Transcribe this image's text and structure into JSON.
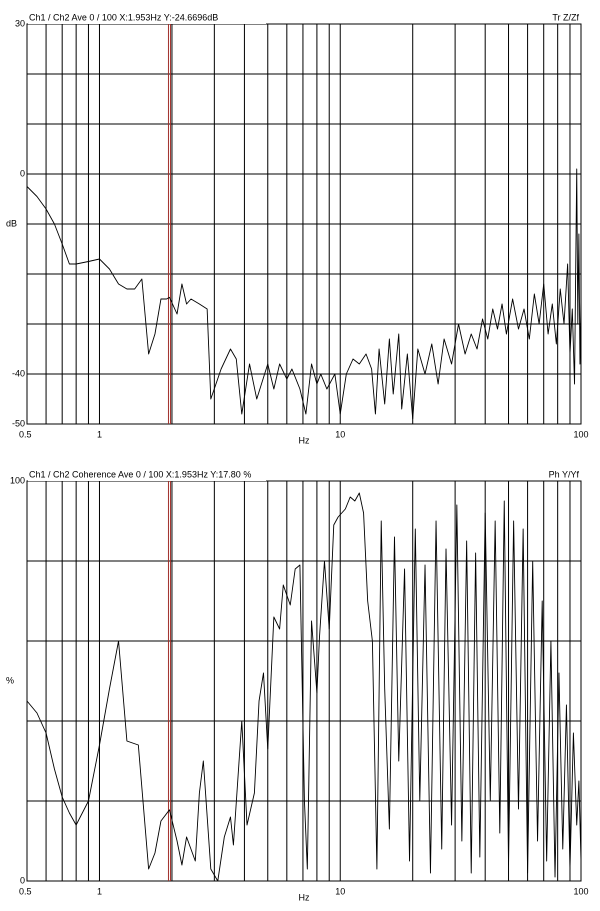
{
  "chart_data": [
    {
      "type": "line",
      "header": "Ch1 / Ch2  Ave 0 / 100  X:1.953Hz  Y:-24.6696dB",
      "corner_label": "Tr Z/Zf",
      "ylabel": "dB",
      "xlabel": "Hz",
      "xscale": "log",
      "xlim": [
        0.5,
        100
      ],
      "xticks": [
        0.5,
        1,
        10,
        100
      ],
      "xgrid": [
        0.5,
        0.6,
        0.7,
        0.8,
        0.9,
        1,
        2,
        3,
        4,
        5,
        6,
        7,
        8,
        9,
        10,
        20,
        30,
        40,
        50,
        60,
        70,
        80,
        90,
        100
      ],
      "ylim": [
        -50,
        30
      ],
      "yticks": [
        -50,
        -40,
        0,
        30
      ],
      "ygrid": [
        -50,
        -40,
        -30,
        -20,
        -10,
        0,
        10,
        20,
        30
      ],
      "cursor": {
        "x": 1.953,
        "color": "#a0302a"
      },
      "x": [
        0.5,
        0.55,
        0.6,
        0.65,
        0.7,
        0.75,
        0.8,
        0.9,
        1.0,
        1.1,
        1.2,
        1.3,
        1.4,
        1.5,
        1.6,
        1.7,
        1.8,
        1.9,
        1.953,
        2.1,
        2.2,
        2.3,
        2.4,
        2.6,
        2.8,
        2.9,
        3.2,
        3.5,
        3.7,
        3.9,
        4.2,
        4.5,
        5,
        5.3,
        5.6,
        6,
        6.3,
        6.8,
        7.2,
        7.6,
        8,
        8.3,
        8.8,
        9.5,
        10,
        10.6,
        11.3,
        12,
        12.8,
        13.5,
        14,
        14.5,
        15.3,
        16,
        16.6,
        17.5,
        18,
        19,
        20,
        21,
        22.5,
        24,
        25.5,
        27,
        29,
        31,
        33,
        35,
        37,
        39,
        41,
        43,
        45,
        47,
        49,
        52,
        55,
        58,
        61,
        64,
        67,
        70,
        73,
        76,
        79,
        82,
        85,
        88,
        90,
        92,
        94,
        96,
        97,
        98,
        99,
        100
      ],
      "series": [
        {
          "color": "#000000",
          "values": [
            -2.5,
            -4.5,
            -7,
            -10,
            -14,
            -18,
            -18,
            -17.5,
            -17,
            -19,
            -22,
            -23,
            -23,
            -21,
            -36,
            -32,
            -25,
            -25,
            -24.67,
            -28,
            -22,
            -26,
            -25,
            -26,
            -27,
            -45,
            -39,
            -35,
            -37,
            -48,
            -38,
            -45,
            -38,
            -43,
            -38,
            -41,
            -39,
            -43,
            -48,
            -38,
            -42,
            -40,
            -43,
            -40,
            -48,
            -40,
            -37,
            -38,
            -36,
            -39,
            -48,
            -35,
            -46,
            -33,
            -44,
            -32,
            -47,
            -36,
            -49,
            -35,
            -40,
            -34,
            -42,
            -33,
            -38,
            -30,
            -36,
            -32,
            -35,
            -29,
            -33,
            -27,
            -31,
            -26,
            -32,
            -25,
            -31,
            -27,
            -33,
            -24,
            -30,
            -22,
            -32,
            -26,
            -34,
            -23,
            -30,
            -18,
            -36,
            -27,
            -42,
            1,
            -30,
            -12,
            -38,
            -25
          ]
        }
      ]
    },
    {
      "type": "line",
      "header": "Ch1 / Ch2  Coherence Ave 0 / 100  X:1.953Hz  Y:17.80 %",
      "corner_label": "Ph Y/Yf",
      "ylabel": "%",
      "xlabel": "Hz",
      "xscale": "log",
      "xlim": [
        0.5,
        100
      ],
      "xticks": [
        0.5,
        1,
        10,
        100
      ],
      "xgrid": [
        0.5,
        0.6,
        0.7,
        0.8,
        0.9,
        1,
        2,
        3,
        4,
        5,
        6,
        7,
        8,
        9,
        10,
        20,
        30,
        40,
        50,
        60,
        70,
        80,
        90,
        100
      ],
      "ylim": [
        0,
        100
      ],
      "yticks": [
        0,
        100
      ],
      "ygrid": [
        0,
        20,
        40,
        60,
        80,
        100
      ],
      "cursor": {
        "x": 1.953,
        "color": "#a0302a"
      },
      "x": [
        0.5,
        0.55,
        0.6,
        0.65,
        0.7,
        0.75,
        0.8,
        0.9,
        1.0,
        1.1,
        1.2,
        1.3,
        1.45,
        1.6,
        1.7,
        1.8,
        1.953,
        2.1,
        2.2,
        2.3,
        2.5,
        2.6,
        2.7,
        2.9,
        3.1,
        3.3,
        3.5,
        3.6,
        3.9,
        4.1,
        4.4,
        4.6,
        4.8,
        5.0,
        5.3,
        5.6,
        5.8,
        6.2,
        6.5,
        6.8,
        7.1,
        7.3,
        7.6,
        8,
        8.2,
        8.6,
        9,
        9.4,
        9.8,
        10.5,
        11,
        11.5,
        12,
        12.5,
        13,
        13.6,
        14.2,
        14.8,
        15.3,
        16,
        16.8,
        17.5,
        18.5,
        19.4,
        20.5,
        21.4,
        22.5,
        23.7,
        25,
        26.4,
        27.5,
        29,
        30.5,
        32,
        33.5,
        35,
        36.5,
        38,
        40,
        42,
        44,
        46,
        48,
        50,
        52.5,
        55,
        57.5,
        60,
        63,
        66,
        69,
        72,
        75,
        78,
        81,
        84,
        87,
        90,
        93,
        96,
        98,
        100
      ],
      "series": [
        {
          "color": "#000000",
          "values": [
            45,
            42,
            37,
            28,
            21,
            17,
            14,
            20,
            34,
            48,
            60,
            35,
            34,
            3,
            7,
            15,
            17.8,
            10,
            4,
            11,
            5,
            22,
            30,
            3,
            0,
            11,
            16,
            9,
            40,
            14,
            22,
            45,
            52,
            33,
            66,
            63,
            74,
            69,
            78,
            79,
            20,
            3,
            65,
            47,
            61,
            80,
            63,
            89,
            91,
            93,
            96,
            95,
            97,
            92,
            70,
            60,
            3,
            90,
            48,
            13,
            86,
            30,
            78,
            5,
            88,
            20,
            79,
            2,
            90,
            8,
            83,
            14,
            94,
            10,
            85,
            2,
            82,
            6,
            92,
            20,
            90,
            12,
            95,
            4,
            90,
            18,
            88,
            2,
            80,
            10,
            70,
            5,
            60,
            1,
            52,
            8,
            44,
            3,
            37,
            14,
            25,
            5
          ]
        }
      ]
    }
  ]
}
